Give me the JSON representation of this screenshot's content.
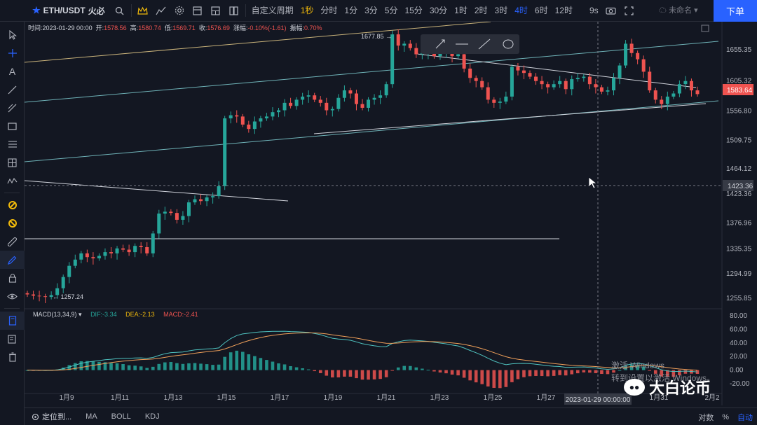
{
  "topbar": {
    "symbol": "ETH/USDT",
    "exchange": "火必",
    "custom_period": "自定义周期",
    "periods": [
      "1秒",
      "分时",
      "1分",
      "3分",
      "5分",
      "15分",
      "30分",
      "1时",
      "2时",
      "3时",
      "4时",
      "6时",
      "12时"
    ],
    "active_period": "4时",
    "extra_period": "9s",
    "unnamed": "未命名",
    "order_button": "下单"
  },
  "ohlc": {
    "time_label": "时间:",
    "time": "2023-01-29 00:00",
    "open_label": "开:",
    "open": "1578.56",
    "high_label": "高:",
    "high": "1580.74",
    "low_label": "低:",
    "low": "1569.71",
    "close_label": "收:",
    "close": "1576.69",
    "change_label": "涨幅:",
    "change": "-0.10%(-1.61)",
    "amp_label": "振幅:",
    "amp": "0.70%"
  },
  "macd": {
    "label": "MACD(13,34,9)",
    "dif": "DIF:-3.34",
    "dea": "DEA:-2.13",
    "macd": "MACD:-2.41"
  },
  "markers": {
    "high": "1677.85",
    "low": "1257.24"
  },
  "bottombar": {
    "locate": "定位到...",
    "ma": "MA",
    "boll": "BOLL",
    "kdj": "KDJ",
    "log": "对数",
    "pct": "%",
    "auto": "自动"
  },
  "crosshair_time": "2023-01-29 00:00:00",
  "watermark": "大白论币",
  "win_activate": "激活 Windows",
  "win_activate2": "转到设置以激活 Windows。",
  "colors": {
    "up": "#26a69a",
    "down": "#ef5350",
    "accent": "#2962ff",
    "bg": "#131722"
  },
  "chart_data": {
    "type": "candlestick",
    "x_ticks": [
      "1月9",
      "1月11",
      "1月13",
      "1月15",
      "1月17",
      "1月19",
      "1月21",
      "1月23",
      "1月25",
      "1月27",
      "1月31",
      "2月2"
    ],
    "y_ticks": [
      1655.35,
      1605.32,
      1556.8,
      1509.75,
      1464.12,
      1423.36,
      1376.96,
      1335.35,
      1294.99,
      1255.85
    ],
    "current_price": "1583.64",
    "crosshair_price": "1423.36",
    "macd_y_ticks": [
      "80.00",
      "60.00",
      "40.00",
      "20.00",
      "0.00",
      "-20.00"
    ],
    "closes": [
      1262,
      1260,
      1259,
      1258,
      1261,
      1272,
      1290,
      1308,
      1318,
      1328,
      1322,
      1320,
      1324,
      1330,
      1328,
      1336,
      1334,
      1330,
      1340,
      1338,
      1328,
      1360,
      1392,
      1395,
      1393,
      1382,
      1388,
      1410,
      1415,
      1412,
      1418,
      1420,
      1436,
      1545,
      1550,
      1548,
      1535,
      1528,
      1540,
      1545,
      1548,
      1555,
      1558,
      1570,
      1565,
      1575,
      1580,
      1582,
      1575,
      1570,
      1558,
      1560,
      1578,
      1590,
      1585,
      1568,
      1562,
      1575,
      1578,
      1582,
      1600,
      1680,
      1662,
      1665,
      1658,
      1648,
      1650,
      1652,
      1645,
      1650,
      1652,
      1645,
      1648,
      1625,
      1610,
      1605,
      1595,
      1575,
      1570,
      1572,
      1580,
      1628,
      1622,
      1618,
      1612,
      1605,
      1600,
      1595,
      1600,
      1605,
      1592,
      1608,
      1610,
      1612,
      1600,
      1595,
      1588,
      1590,
      1610,
      1630,
      1665,
      1650,
      1640,
      1620,
      1590,
      1575,
      1568,
      1580,
      1585,
      1600,
      1605,
      1590,
      1584
    ]
  }
}
